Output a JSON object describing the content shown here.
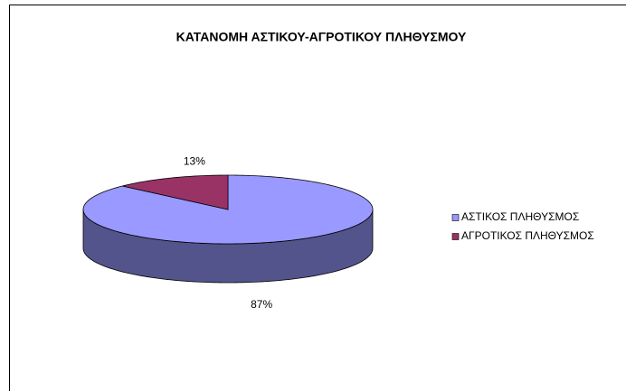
{
  "chart_data": {
    "type": "pie",
    "title": "ΚΑΤΑΝΟΜΗ ΑΣΤΙΚΟΥ-ΑΓΡΟΤΙΚΟΥ ΠΛΗΘΥΣΜΟΥ",
    "categories": [
      "ΑΣΤΙΚΟΣ ΠΛΗΘΥΣΜΟΣ",
      "ΑΓΡΟΤΙΚΟΣ ΠΛΗΘΥΣΜΟΣ"
    ],
    "values": [
      87,
      13
    ],
    "value_labels": [
      "87%",
      "13%"
    ],
    "colors": [
      "#9999ff",
      "#993366"
    ],
    "legend": "right"
  }
}
